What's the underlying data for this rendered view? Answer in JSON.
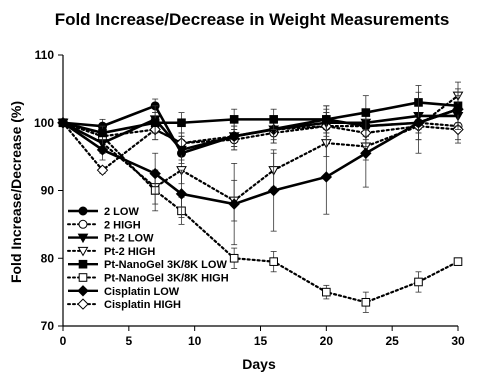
{
  "chart_data": {
    "type": "line",
    "title": "Fold Increase/Decrease in Weight Measurements",
    "xlabel": "Days",
    "ylabel": "Fold Increase/Decrease (%)",
    "xlim": [
      0,
      30
    ],
    "ylim": [
      70,
      110
    ],
    "xticks": [
      "0",
      "5",
      "10",
      "15",
      "20",
      "25",
      "30"
    ],
    "yticks": [
      "70",
      "80",
      "90",
      "100",
      "110"
    ],
    "grid": false,
    "legend_position": "bottom-left",
    "series": [
      {
        "name": "2 LOW",
        "marker": "circle",
        "fill": "filled",
        "dashed": false,
        "x": [
          0,
          3,
          7,
          9,
          13,
          20,
          23,
          27,
          30
        ],
        "y": [
          100,
          99.5,
          102.5,
          95.5,
          98,
          100.5,
          99.5,
          100,
          102
        ],
        "err": [
          0,
          1,
          1,
          1,
          1.5,
          2,
          1.5,
          1.5,
          2
        ]
      },
      {
        "name": "2 HIGH",
        "marker": "circle",
        "fill": "open",
        "dashed": true,
        "x": [
          0,
          3,
          7,
          9,
          13,
          16,
          20,
          23,
          27,
          30
        ],
        "y": [
          100,
          98,
          99,
          97,
          97.5,
          98.5,
          99.5,
          99.5,
          100,
          99.5
        ],
        "err": [
          0,
          1,
          1.5,
          1,
          1.5,
          1.5,
          2,
          2,
          1.5,
          2
        ]
      },
      {
        "name": "Pt-2  LOW",
        "marker": "triangle-down",
        "fill": "filled",
        "dashed": false,
        "x": [
          0,
          3,
          7,
          9,
          13,
          16,
          20,
          23,
          27,
          30
        ],
        "y": [
          100,
          97,
          100.5,
          96,
          98,
          99,
          100,
          100,
          101,
          101
        ],
        "err": [
          0,
          1.5,
          2,
          2,
          2,
          2,
          2,
          2,
          2,
          2
        ]
      },
      {
        "name": "Pt-2  HIGH",
        "marker": "triangle-down",
        "fill": "open",
        "dashed": true,
        "x": [
          0,
          3,
          7,
          9,
          13,
          16,
          20,
          23,
          27,
          30
        ],
        "y": [
          100,
          97,
          90.5,
          93,
          88.5,
          93,
          97,
          96.5,
          99.5,
          104
        ],
        "err": [
          0,
          1.5,
          2.5,
          2,
          3,
          2.5,
          2,
          2,
          2,
          2
        ]
      },
      {
        "name": "Pt-NanoGel 3K/8K LOW",
        "marker": "square",
        "fill": "filled",
        "dashed": false,
        "x": [
          0,
          3,
          7,
          9,
          13,
          16,
          20,
          23,
          27,
          30
        ],
        "y": [
          100,
          98.5,
          100,
          100,
          100.5,
          100.5,
          100.5,
          101.5,
          103,
          102.5
        ],
        "err": [
          0,
          1,
          1.5,
          1.5,
          1.5,
          1.5,
          2,
          2.5,
          2.5,
          2.5
        ]
      },
      {
        "name": "Pt-NanoGel 3K/8K HIGH",
        "marker": "square",
        "fill": "open",
        "dashed": true,
        "x": [
          0,
          3,
          7,
          9,
          13,
          16,
          20,
          23,
          27,
          30
        ],
        "y": [
          100,
          98,
          90,
          87,
          80,
          79.5,
          75,
          73.5,
          76.5,
          79.5
        ],
        "err": [
          0,
          1.5,
          3,
          2,
          1.5,
          1.5,
          1,
          1.5,
          1.5,
          0.5
        ]
      },
      {
        "name": "Cisplatin LOW",
        "marker": "diamond",
        "fill": "filled",
        "dashed": false,
        "x": [
          0,
          3,
          7,
          9,
          13,
          16,
          20,
          23,
          27,
          30
        ],
        "y": [
          100,
          96,
          92.5,
          89.5,
          88,
          90,
          92,
          95.5,
          100,
          102
        ],
        "err": [
          0,
          1.5,
          3,
          3.5,
          6,
          6,
          5.5,
          5,
          4.5,
          2.5
        ]
      },
      {
        "name": "Cisplatin HIGH",
        "marker": "diamond",
        "fill": "open",
        "dashed": true,
        "x": [
          0,
          3,
          7,
          9,
          13,
          16,
          20,
          23,
          27,
          30
        ],
        "y": [
          100,
          93,
          99,
          97,
          98,
          99,
          99.5,
          98.5,
          99.5,
          99
        ],
        "err": [
          0,
          0.5,
          1.5,
          1.5,
          1.5,
          1.5,
          2,
          2,
          2,
          2
        ]
      }
    ]
  }
}
